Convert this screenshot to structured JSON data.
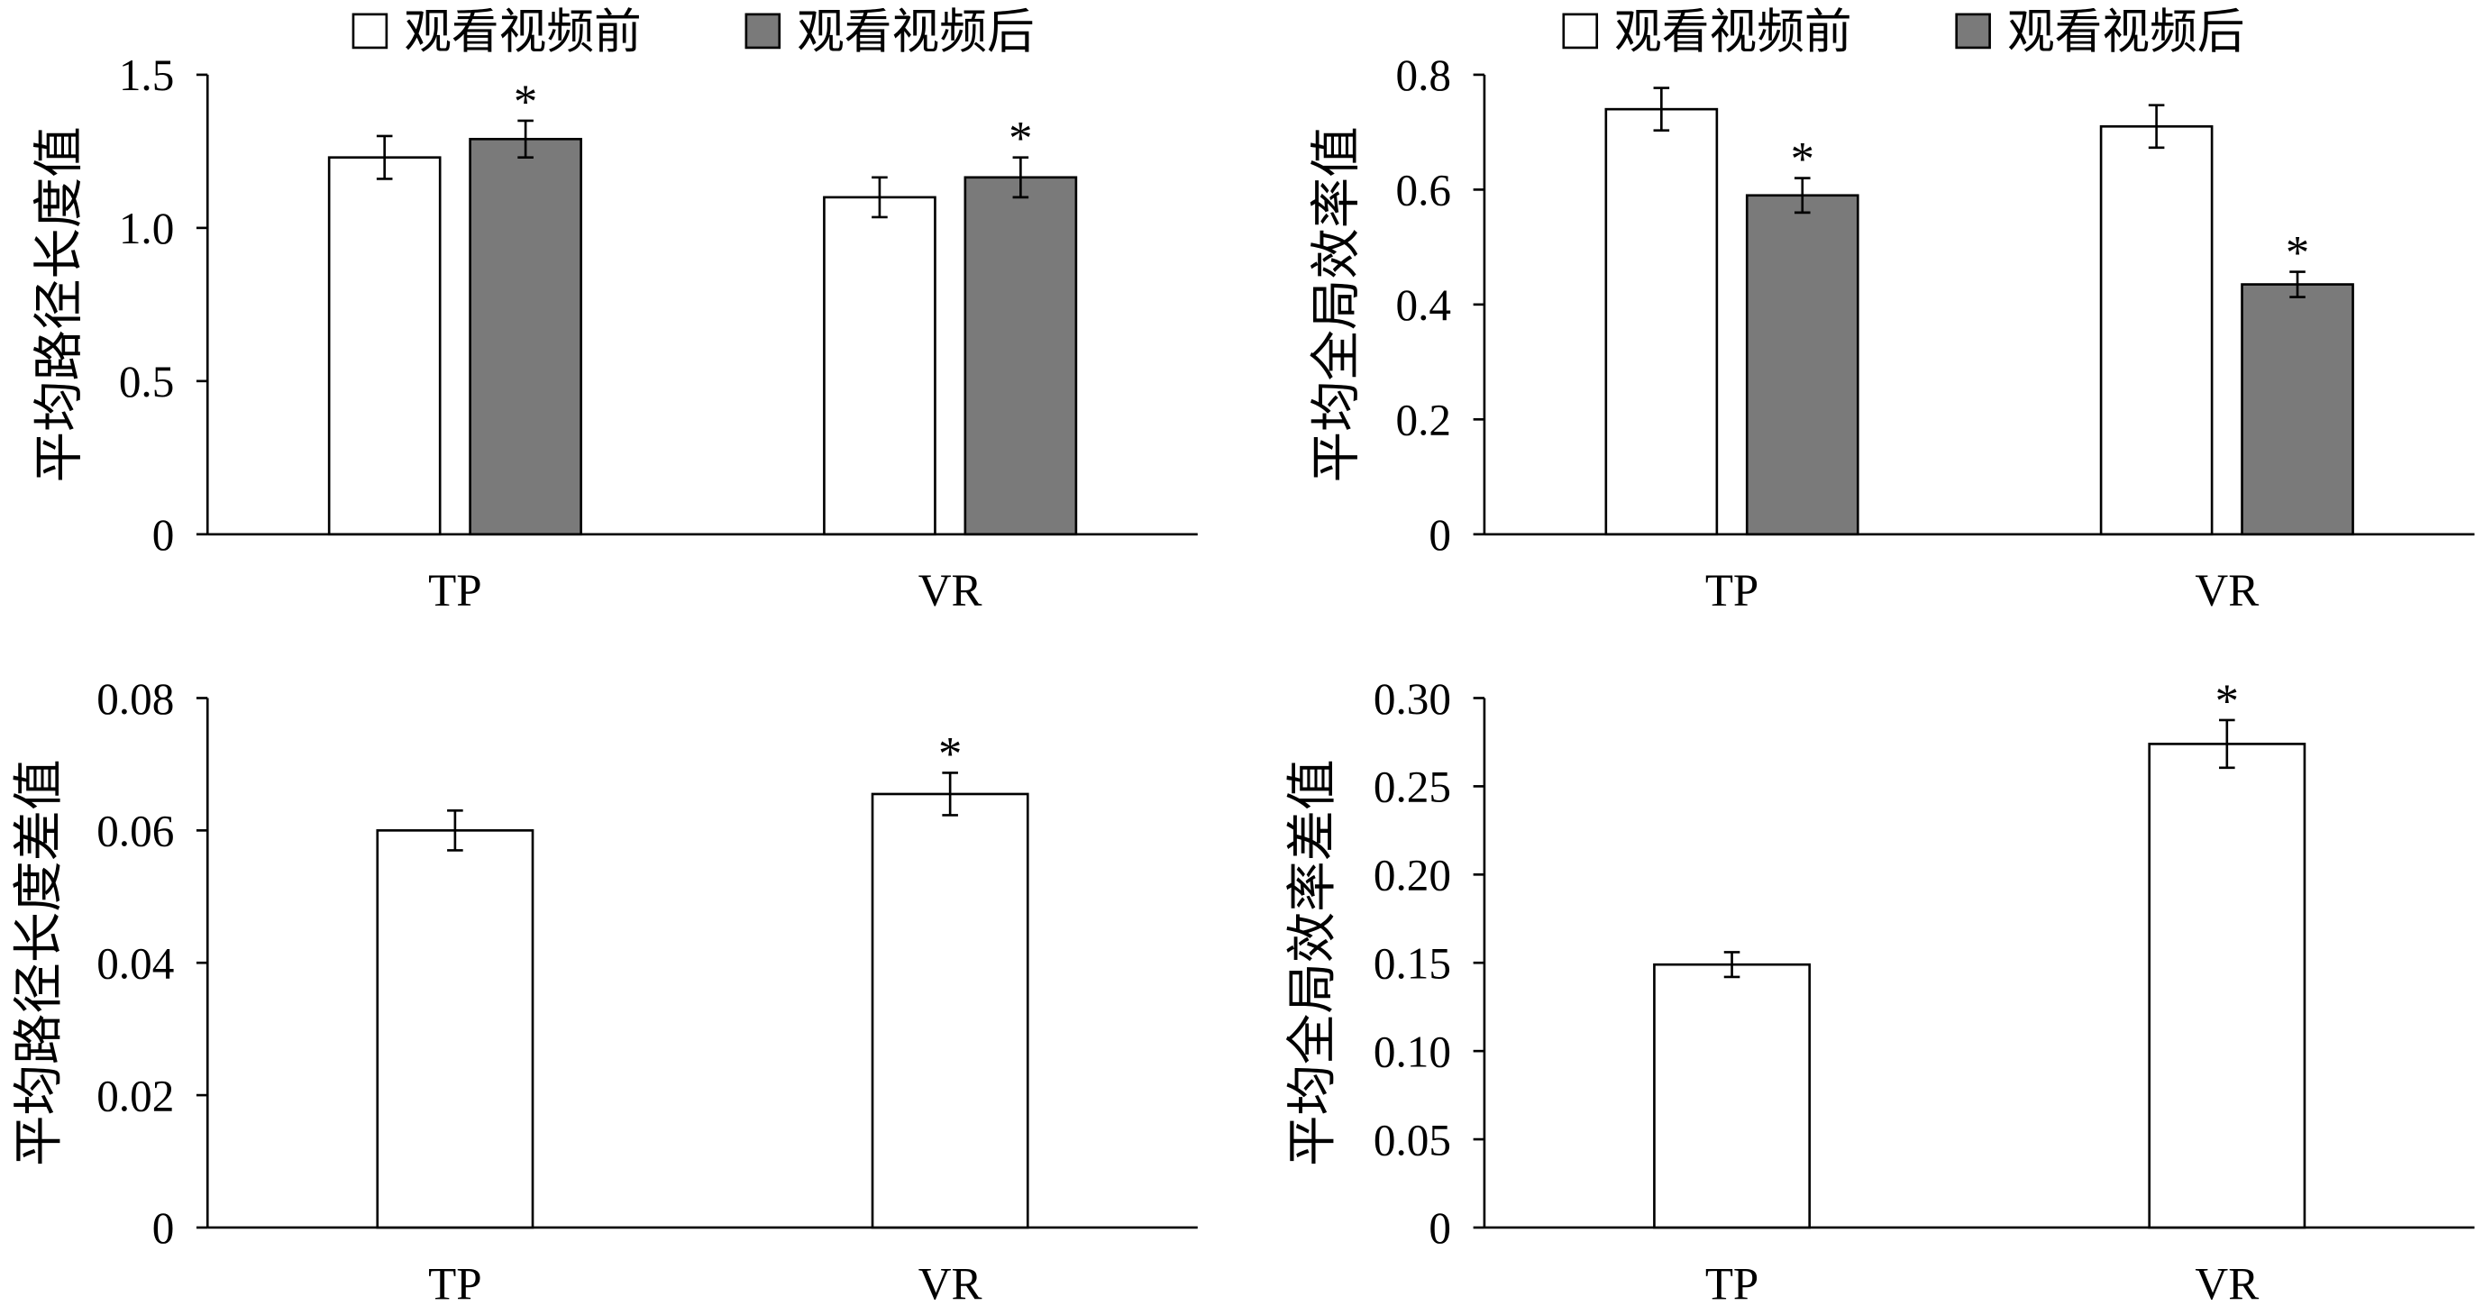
{
  "colors": {
    "outline": "#000000",
    "background": "#ffffff"
  },
  "chart_data": [
    {
      "type": "bar",
      "ylabel": "平均路径长度值",
      "categories": [
        "TP",
        "VR"
      ],
      "ylim": [
        0,
        1.5
      ],
      "yticks": [
        0,
        0.5,
        1.0,
        1.5
      ],
      "ytick_labels": [
        "0",
        "0.5",
        "1.0",
        "1.5"
      ],
      "grid": false,
      "legend": "top",
      "significance_marker": "*",
      "series": [
        {
          "name": "观看视频前",
          "color": "#ffffff",
          "values": [
            1.23,
            1.1
          ],
          "errors": [
            0.07,
            0.065
          ],
          "significant": [
            false,
            false
          ]
        },
        {
          "name": "观看视频后",
          "color": "#7a7a7a",
          "values": [
            1.29,
            1.165
          ],
          "errors": [
            0.06,
            0.065
          ],
          "significant": [
            true,
            true
          ]
        }
      ]
    },
    {
      "type": "bar",
      "ylabel": "平均全局效率值",
      "categories": [
        "TP",
        "VR"
      ],
      "ylim": [
        0,
        0.8
      ],
      "yticks": [
        0,
        0.2,
        0.4,
        0.6,
        0.8
      ],
      "ytick_labels": [
        "0",
        "0.2",
        "0.4",
        "0.6",
        "0.8"
      ],
      "grid": false,
      "legend": "top",
      "significance_marker": "*",
      "series": [
        {
          "name": "观看视频前",
          "color": "#ffffff",
          "values": [
            0.74,
            0.71
          ],
          "errors": [
            0.037,
            0.037
          ],
          "significant": [
            false,
            false
          ]
        },
        {
          "name": "观看视频后",
          "color": "#7a7a7a",
          "values": [
            0.59,
            0.435
          ],
          "errors": [
            0.03,
            0.022
          ],
          "significant": [
            true,
            true
          ]
        }
      ]
    },
    {
      "type": "bar",
      "ylabel": "平均路径长度差值",
      "categories": [
        "TP",
        "VR"
      ],
      "ylim": [
        0,
        0.08
      ],
      "yticks": [
        0,
        0.02,
        0.04,
        0.06,
        0.08
      ],
      "ytick_labels": [
        "0",
        "0.02",
        "0.04",
        "0.06",
        "0.08"
      ],
      "grid": false,
      "legend": "none",
      "significance_marker": "*",
      "series": [
        {
          "color": "#ffffff",
          "values": [
            0.06,
            0.0655
          ],
          "errors": [
            0.003,
            0.0032
          ],
          "significant": [
            false,
            true
          ]
        }
      ]
    },
    {
      "type": "bar",
      "ylabel": "平均全局效率差值",
      "categories": [
        "TP",
        "VR"
      ],
      "ylim": [
        0,
        0.3
      ],
      "yticks": [
        0,
        0.05,
        0.1,
        0.15,
        0.2,
        0.25,
        0.3
      ],
      "ytick_labels": [
        "0",
        "0.05",
        "0.10",
        "0.15",
        "0.20",
        "0.25",
        "0.30"
      ],
      "grid": false,
      "legend": "none",
      "significance_marker": "*",
      "series": [
        {
          "color": "#ffffff",
          "values": [
            0.149,
            0.274
          ],
          "errors": [
            0.007,
            0.0135
          ],
          "significant": [
            false,
            true
          ]
        }
      ]
    }
  ]
}
